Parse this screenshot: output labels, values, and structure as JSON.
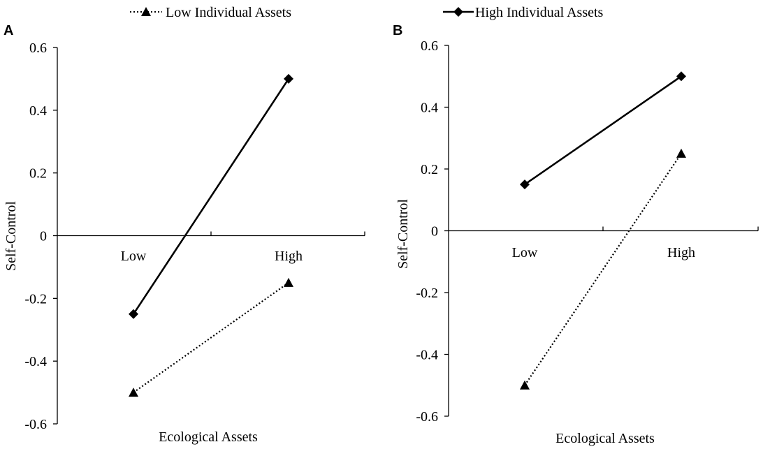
{
  "legend": {
    "entries": [
      {
        "label": "Low Individual Assets",
        "style": "dotted",
        "marker": "triangle"
      },
      {
        "label": "High Individual Assets",
        "style": "solid",
        "marker": "diamond"
      }
    ]
  },
  "chart_data": [
    {
      "type": "line",
      "panel_label": "A",
      "xlabel": "Ecological Assets",
      "ylabel": "Self-Control",
      "categories": [
        "Low",
        "High"
      ],
      "ylim": [
        -0.6,
        0.6
      ],
      "yticks": [
        "0.6",
        "0.4",
        "0.2",
        "0",
        "-0.2",
        "-0.4",
        "-0.6"
      ],
      "ytick_values": [
        0.6,
        0.4,
        0.2,
        0,
        -0.2,
        -0.4,
        -0.6
      ],
      "grid": false,
      "legend_position": "top",
      "series": [
        {
          "name": "Low Individual Assets",
          "values": [
            -0.5,
            -0.15
          ],
          "line": "dotted",
          "marker": "triangle",
          "color": "#000000"
        },
        {
          "name": "High Individual Assets",
          "values": [
            -0.25,
            0.5
          ],
          "line": "solid",
          "marker": "diamond",
          "color": "#000000"
        }
      ]
    },
    {
      "type": "line",
      "panel_label": "B",
      "xlabel": "Ecological Assets",
      "ylabel": "Self-Control",
      "categories": [
        "Low",
        "High"
      ],
      "ylim": [
        -0.6,
        0.6
      ],
      "yticks": [
        "0.6",
        "0.4",
        "0.2",
        "0",
        "-0.2",
        "-0.4",
        "-0.6"
      ],
      "ytick_values": [
        0.6,
        0.4,
        0.2,
        0,
        -0.2,
        -0.4,
        -0.6
      ],
      "grid": false,
      "legend_position": "top",
      "series": [
        {
          "name": "Low Individual Assets",
          "values": [
            -0.5,
            0.25
          ],
          "line": "dotted",
          "marker": "triangle",
          "color": "#000000"
        },
        {
          "name": "High Individual Assets",
          "values": [
            0.15,
            0.5
          ],
          "line": "solid",
          "marker": "diamond",
          "color": "#000000"
        }
      ]
    }
  ]
}
